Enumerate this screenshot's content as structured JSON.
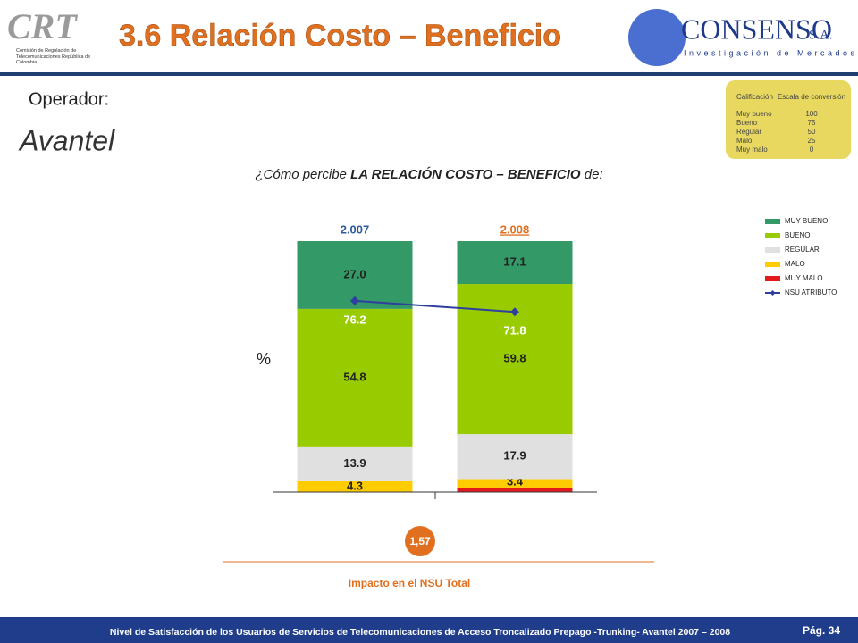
{
  "header": {
    "title": "3.6 Relación Costo – Beneficio",
    "left_logo": "CRT",
    "left_logo_sub": "Comisión de Regulación de Telecomunicaciones República de Colombia",
    "right_logo": "CONSENSO",
    "right_logo_suffix": "S.A.",
    "right_logo_sub": "Investigación de Mercados"
  },
  "operator_label": "Operador:",
  "operator_name": "Avantel",
  "question": {
    "prefix": "¿Cómo percibe ",
    "bold": "LA RELACIÓN COSTO – BENEFICIO",
    "suffix": " de:"
  },
  "scale_table": {
    "headers": [
      "Calificación",
      "Escala de conversión"
    ],
    "rows": [
      [
        "Muy bueno",
        "100"
      ],
      [
        "Bueno",
        "75"
      ],
      [
        "Regular",
        "50"
      ],
      [
        "Malo",
        "25"
      ],
      [
        "Muy malo",
        "0"
      ]
    ]
  },
  "chart_data": {
    "type": "bar",
    "stacked": true,
    "ylabel": "%",
    "categories": [
      "2.007",
      "2.008"
    ],
    "ylim": [
      0,
      100
    ],
    "series": [
      {
        "name": "MUY MALO",
        "color": "#e31a1c",
        "values": [
          0,
          1.8
        ]
      },
      {
        "name": "MALO",
        "color": "#ffcc00",
        "values": [
          4.3,
          3.4
        ],
        "value_labels": [
          "4.3",
          "3.4"
        ]
      },
      {
        "name": "REGULAR",
        "color": "#e0e0e0",
        "values": [
          13.9,
          17.9
        ],
        "value_labels": [
          "13.9",
          "17.9"
        ]
      },
      {
        "name": "BUENO",
        "color": "#99cc00",
        "values": [
          54.8,
          59.8
        ],
        "value_labels": [
          "54.8",
          "59.8"
        ]
      },
      {
        "name": "MUY BUENO",
        "color": "#339966",
        "values": [
          27.0,
          17.1
        ],
        "value_labels": [
          "27.0",
          "17.1"
        ]
      }
    ],
    "line": {
      "name": "NSU ATRIBUTO",
      "color": "#2e3f9e",
      "values": [
        76.2,
        71.8
      ],
      "value_labels": [
        "76.2",
        "71.8"
      ]
    }
  },
  "impact": {
    "value": "1,57",
    "label": "Impacto en el NSU Total"
  },
  "footer": {
    "text": "Nivel de Satisfacción de los Usuarios de Servicios de Telecomunicaciones de Acceso Troncalizado Prepago -Trunking- Avantel 2007 – 2008",
    "page": "Pág. 34"
  }
}
